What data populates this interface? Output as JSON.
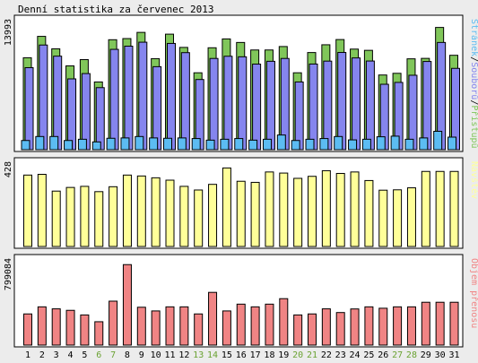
{
  "title": "Denní statistika za červenec 2013",
  "colors": {
    "background": "#ececec",
    "panel_bg": "#ffffff",
    "border": "#000000",
    "pristupu": "#80c65a",
    "souboru": "#8585ee",
    "stranek": "#5cbcf2",
    "navstev": "#ffff99",
    "objem": "#f08484",
    "weekend_label": "#6aa232"
  },
  "chart_data": [
    {
      "type": "bar",
      "panel": "top",
      "axis_max_label": "13993",
      "ylim": [
        0,
        13993
      ],
      "legend_placement": "right",
      "legend": [
        {
          "key": "stranek",
          "text": "Stránek"
        },
        {
          "key": "sep1",
          "text": "/"
        },
        {
          "key": "souboru",
          "text": "Souborů"
        },
        {
          "key": "sep2",
          "text": "/"
        },
        {
          "key": "pristupu",
          "text": "Přístupů"
        }
      ],
      "categories": [
        "1",
        "2",
        "3",
        "4",
        "5",
        "6",
        "7",
        "8",
        "9",
        "10",
        "11",
        "12",
        "13",
        "14",
        "15",
        "16",
        "17",
        "18",
        "19",
        "20",
        "21",
        "22",
        "23",
        "24",
        "25",
        "26",
        "27",
        "28",
        "29",
        "30",
        "31"
      ],
      "weekend": [
        false,
        false,
        false,
        false,
        false,
        true,
        true,
        false,
        false,
        false,
        false,
        false,
        true,
        true,
        false,
        false,
        false,
        false,
        false,
        true,
        true,
        false,
        false,
        false,
        false,
        false,
        true,
        true,
        false,
        false,
        false
      ],
      "series": [
        {
          "name": "Přístupů",
          "key": "pristupu",
          "values": [
            10400,
            12820,
            11410,
            9480,
            10190,
            7660,
            12440,
            12570,
            13270,
            10300,
            13070,
            11570,
            8700,
            11530,
            12530,
            12130,
            11280,
            11280,
            11670,
            8700,
            10990,
            11870,
            12460,
            11380,
            11240,
            8450,
            8640,
            10280,
            10330,
            13830,
            10680
          ]
        },
        {
          "name": "Souborů",
          "key": "souboru",
          "values": [
            9280,
            11840,
            10580,
            8010,
            8610,
            7020,
            11350,
            11710,
            12160,
            9390,
            12020,
            10980,
            7940,
            10320,
            10570,
            10510,
            9680,
            10000,
            10320,
            7660,
            9690,
            10020,
            11000,
            10380,
            10030,
            7400,
            7610,
            8420,
            9980,
            12130,
            9200
          ]
        },
        {
          "name": "Stránek",
          "key": "stranek",
          "values": [
            1040,
            1490,
            1490,
            1040,
            1180,
            880,
            1290,
            1330,
            1490,
            1330,
            1290,
            1330,
            1260,
            1080,
            1180,
            1260,
            1080,
            1180,
            1660,
            1040,
            1180,
            1260,
            1490,
            1110,
            1180,
            1460,
            1530,
            1180,
            1330,
            2080,
            1420
          ]
        }
      ]
    },
    {
      "type": "bar",
      "panel": "middle",
      "axis_max_label": "428",
      "ylim": [
        0,
        428
      ],
      "legend_placement": "right",
      "legend": [
        {
          "key": "navstev",
          "text": "Návštěv"
        }
      ],
      "categories": [
        "1",
        "2",
        "3",
        "4",
        "5",
        "6",
        "7",
        "8",
        "9",
        "10",
        "11",
        "12",
        "13",
        "14",
        "15",
        "16",
        "17",
        "18",
        "19",
        "20",
        "21",
        "22",
        "23",
        "24",
        "25",
        "26",
        "27",
        "28",
        "29",
        "30",
        "31"
      ],
      "series": [
        {
          "name": "Návštěv",
          "key": "navstev",
          "values": [
            392,
            396,
            304,
            324,
            330,
            301,
            328,
            392,
            387,
            377,
            364,
            330,
            310,
            341,
            431,
            358,
            352,
            409,
            403,
            374,
            385,
            416,
            401,
            409,
            362,
            309,
            311,
            322,
            412,
            412,
            412
          ]
        }
      ]
    },
    {
      "type": "bar",
      "panel": "bottom",
      "axis_max_label": "799084",
      "ylim": [
        0,
        799084
      ],
      "legend_placement": "right",
      "legend": [
        {
          "key": "objem",
          "text": "Objem přenosu"
        }
      ],
      "categories": [
        "1",
        "2",
        "3",
        "4",
        "5",
        "6",
        "7",
        "8",
        "9",
        "10",
        "11",
        "12",
        "13",
        "14",
        "15",
        "16",
        "17",
        "18",
        "19",
        "20",
        "21",
        "22",
        "23",
        "24",
        "25",
        "26",
        "27",
        "28",
        "29",
        "30",
        "31"
      ],
      "series": [
        {
          "name": "Objem přenosu",
          "key": "objem",
          "values": [
            312000,
            383000,
            363000,
            348000,
            302000,
            234000,
            440000,
            806000,
            379000,
            342000,
            383000,
            383000,
            312000,
            528000,
            342000,
            410000,
            383000,
            410000,
            465000,
            302000,
            312000,
            363000,
            326000,
            362000,
            383000,
            369000,
            383000,
            383000,
            429000,
            429000,
            429000
          ]
        }
      ]
    }
  ]
}
